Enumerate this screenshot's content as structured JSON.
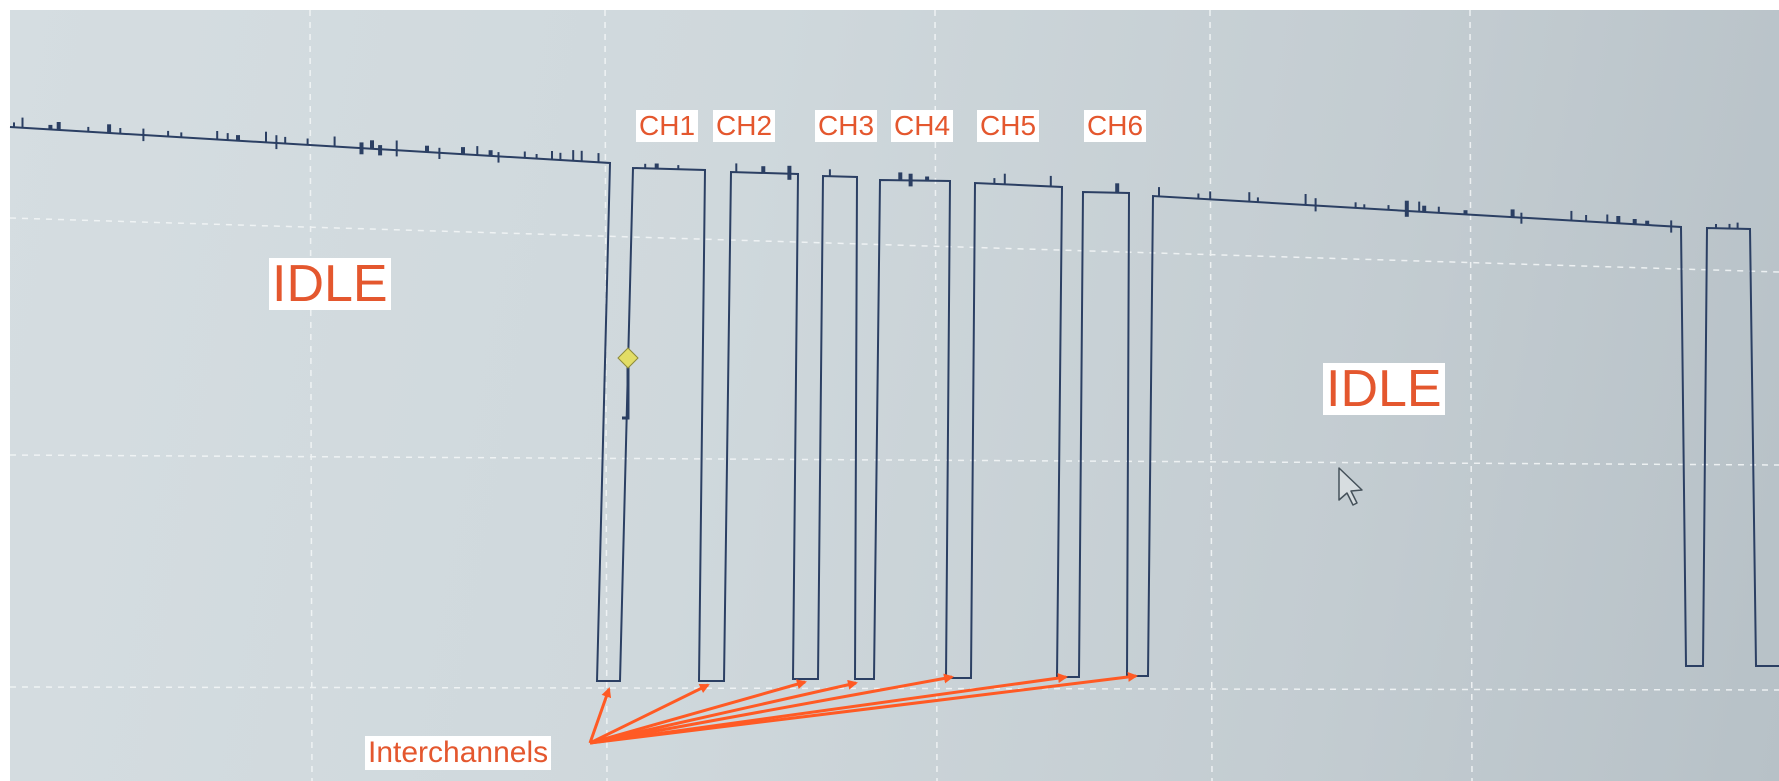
{
  "channel_labels": [
    "CH1",
    "CH2",
    "CH3",
    "CH4",
    "CH5",
    "CH6"
  ],
  "idle_labels": [
    "IDLE",
    "IDLE"
  ],
  "interchannel_label": "Interchannels",
  "colors": {
    "annotation_text": "#e4572e",
    "annotation_background": "#ffffff",
    "arrow": "#ff5a24",
    "trace": "#2b3f63",
    "screen_background": "#cfd8dc",
    "gridline": "#f2f5f6",
    "marker_fill": "#e2dd66"
  },
  "icons": [
    "cursor-arrow-icon",
    "diamond-marker-icon"
  ]
}
